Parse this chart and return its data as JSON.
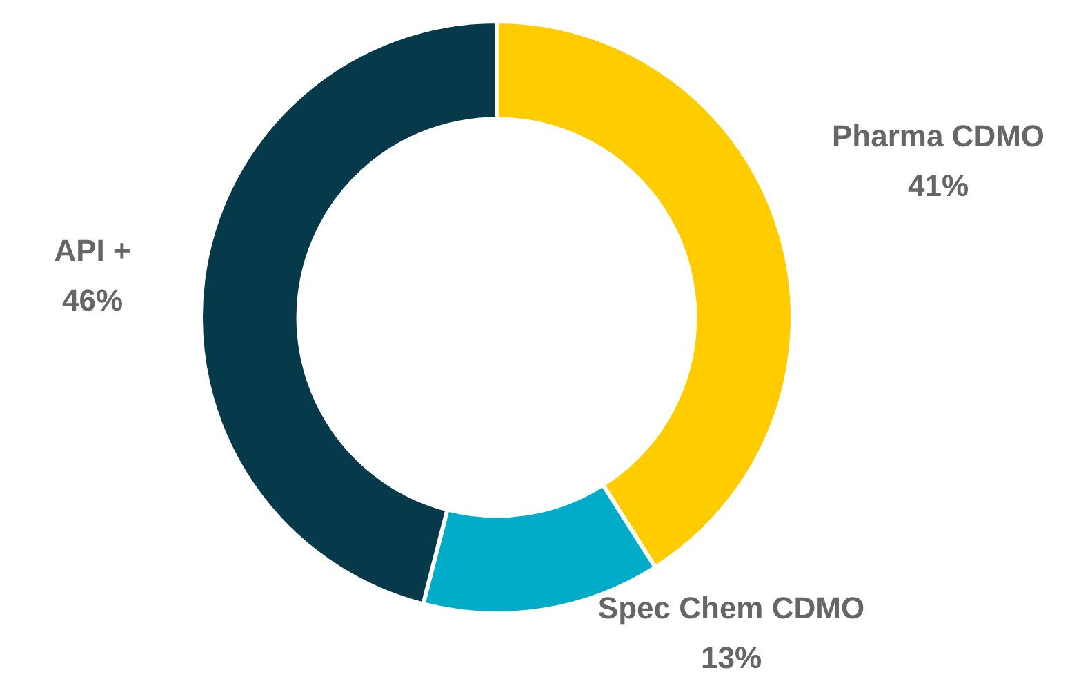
{
  "chart_data": {
    "type": "donut",
    "categories": [
      "Pharma CDMO",
      "Spec Chem CDMO",
      "API +"
    ],
    "values": [
      41,
      13,
      46
    ],
    "value_labels": [
      "41%",
      "13%",
      "46%"
    ],
    "colors": [
      "#ffcc00",
      "#00acc8",
      "#063a4a"
    ]
  }
}
